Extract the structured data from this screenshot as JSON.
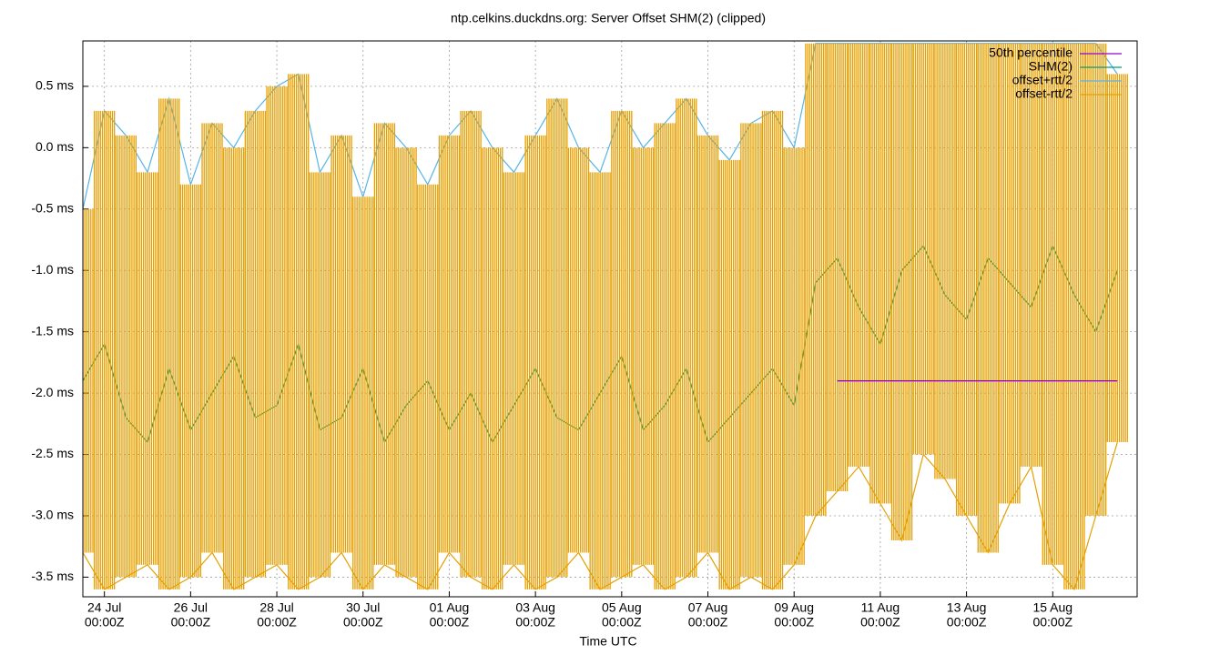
{
  "chart_data": {
    "type": "line",
    "title": "ntp.celkins.duckdns.org: Server Offset SHM(2) (clipped)",
    "x_label": "Time UTC",
    "x": [
      "23 Jul 12:00Z",
      "24 Jul 00:00Z",
      "24 Jul 12:00Z",
      "25 Jul 00:00Z",
      "25 Jul 12:00Z",
      "26 Jul 00:00Z",
      "26 Jul 12:00Z",
      "27 Jul 00:00Z",
      "27 Jul 12:00Z",
      "28 Jul 00:00Z",
      "28 Jul 12:00Z",
      "29 Jul 00:00Z",
      "29 Jul 12:00Z",
      "30 Jul 00:00Z",
      "30 Jul 12:00Z",
      "31 Jul 00:00Z",
      "31 Jul 12:00Z",
      "01 Aug 00:00Z",
      "01 Aug 12:00Z",
      "02 Aug 00:00Z",
      "02 Aug 12:00Z",
      "03 Aug 00:00Z",
      "03 Aug 12:00Z",
      "04 Aug 00:00Z",
      "04 Aug 12:00Z",
      "05 Aug 00:00Z",
      "05 Aug 12:00Z",
      "06 Aug 00:00Z",
      "06 Aug 12:00Z",
      "07 Aug 00:00Z",
      "07 Aug 12:00Z",
      "08 Aug 00:00Z",
      "08 Aug 12:00Z",
      "09 Aug 00:00Z",
      "09 Aug 12:00Z",
      "10 Aug 00:00Z",
      "10 Aug 12:00Z",
      "11 Aug 00:00Z",
      "11 Aug 12:00Z",
      "12 Aug 00:00Z",
      "12 Aug 12:00Z",
      "13 Aug 00:00Z",
      "13 Aug 12:00Z",
      "14 Aug 00:00Z",
      "14 Aug 12:00Z",
      "15 Aug 00:00Z",
      "15 Aug 12:00Z",
      "16 Aug 00:00Z",
      "16 Aug 12:00Z"
    ],
    "series": [
      {
        "name": "50th percentile",
        "color": "#9400d3",
        "values": [
          null,
          null,
          null,
          null,
          null,
          null,
          null,
          null,
          null,
          null,
          null,
          null,
          null,
          null,
          null,
          null,
          null,
          null,
          null,
          null,
          null,
          null,
          null,
          null,
          null,
          null,
          null,
          null,
          null,
          null,
          null,
          null,
          null,
          null,
          null,
          -1.9,
          -1.9,
          -1.9,
          -1.9,
          -1.9,
          -1.9,
          -1.9,
          -1.9,
          -1.9,
          -1.9,
          -1.9,
          -1.9,
          -1.9,
          -1.9
        ]
      },
      {
        "name": "SHM(2)",
        "color": "#009e73",
        "values": [
          -1.9,
          -1.6,
          -2.2,
          -2.4,
          -1.8,
          -2.3,
          -2.0,
          -1.7,
          -2.2,
          -2.1,
          -1.6,
          -2.3,
          -2.2,
          -1.8,
          -2.4,
          -2.1,
          -1.9,
          -2.3,
          -2.0,
          -2.4,
          -2.1,
          -1.8,
          -2.2,
          -2.3,
          -2.0,
          -1.7,
          -2.3,
          -2.1,
          -1.8,
          -2.4,
          -2.2,
          -2.0,
          -1.8,
          -2.1,
          -1.1,
          -0.9,
          -1.3,
          -1.6,
          -1.0,
          -0.8,
          -1.2,
          -1.4,
          -0.9,
          -1.1,
          -1.3,
          -0.8,
          -1.2,
          -1.5,
          -1.0
        ]
      },
      {
        "name": "offset+rtt/2",
        "color": "#56b4e9",
        "values": [
          -0.5,
          0.3,
          0.1,
          -0.2,
          0.4,
          -0.3,
          0.2,
          0.0,
          0.3,
          0.5,
          0.6,
          -0.2,
          0.1,
          -0.4,
          0.2,
          0.0,
          -0.3,
          0.1,
          0.3,
          0.0,
          -0.2,
          0.1,
          0.4,
          0.0,
          -0.2,
          0.3,
          0.0,
          0.2,
          0.4,
          0.1,
          -0.1,
          0.2,
          0.3,
          0.0,
          0.85,
          0.85,
          0.85,
          0.85,
          0.85,
          0.85,
          0.85,
          0.85,
          0.85,
          0.85,
          0.85,
          0.85,
          0.85,
          0.85,
          0.6
        ]
      },
      {
        "name": "offset-rtt/2",
        "color": "#e69f00",
        "values": [
          -3.3,
          -3.6,
          -3.5,
          -3.4,
          -3.6,
          -3.5,
          -3.3,
          -3.6,
          -3.5,
          -3.4,
          -3.6,
          -3.5,
          -3.3,
          -3.6,
          -3.4,
          -3.5,
          -3.6,
          -3.3,
          -3.5,
          -3.6,
          -3.4,
          -3.6,
          -3.5,
          -3.3,
          -3.6,
          -3.5,
          -3.4,
          -3.6,
          -3.5,
          -3.3,
          -3.6,
          -3.5,
          -3.6,
          -3.4,
          -3.0,
          -2.8,
          -2.6,
          -2.9,
          -3.2,
          -2.5,
          -2.7,
          -3.0,
          -3.3,
          -2.9,
          -2.6,
          -3.4,
          -3.6,
          -3.0,
          -2.4
        ]
      }
    ],
    "xlim": [
      "23 Jul 12:00Z",
      "16 Aug 23:00Z"
    ],
    "xticks": [
      {
        "value": "24 Jul 00:00Z",
        "label": [
          "24 Jul",
          "00:00Z"
        ]
      },
      {
        "value": "26 Jul 00:00Z",
        "label": [
          "26 Jul",
          "00:00Z"
        ]
      },
      {
        "value": "28 Jul 00:00Z",
        "label": [
          "28 Jul",
          "00:00Z"
        ]
      },
      {
        "value": "30 Jul 00:00Z",
        "label": [
          "30 Jul",
          "00:00Z"
        ]
      },
      {
        "value": "01 Aug 00:00Z",
        "label": [
          "01 Aug",
          "00:00Z"
        ]
      },
      {
        "value": "03 Aug 00:00Z",
        "label": [
          "03 Aug",
          "00:00Z"
        ]
      },
      {
        "value": "05 Aug 00:00Z",
        "label": [
          "05 Aug",
          "00:00Z"
        ]
      },
      {
        "value": "07 Aug 00:00Z",
        "label": [
          "07 Aug",
          "00:00Z"
        ]
      },
      {
        "value": "09 Aug 00:00Z",
        "label": [
          "09 Aug",
          "00:00Z"
        ]
      },
      {
        "value": "11 Aug 00:00Z",
        "label": [
          "11 Aug",
          "00:00Z"
        ]
      },
      {
        "value": "13 Aug 00:00Z",
        "label": [
          "13 Aug",
          "00:00Z"
        ]
      },
      {
        "value": "15 Aug 00:00Z",
        "label": [
          "15 Aug",
          "00:00Z"
        ]
      }
    ],
    "ylim": [
      -3.66,
      0.87
    ],
    "yticks": [
      {
        "value": 0.5,
        "label": "0.5 ms"
      },
      {
        "value": 0.0,
        "label": "0.0 ms"
      },
      {
        "value": -0.5,
        "label": "-0.5 ms"
      },
      {
        "value": -1.0,
        "label": "-1.0 ms"
      },
      {
        "value": -1.5,
        "label": "-1.5 ms"
      },
      {
        "value": -2.0,
        "label": "-2.0 ms"
      },
      {
        "value": -2.5,
        "label": "-2.5 ms"
      },
      {
        "value": -3.0,
        "label": "-3.0 ms"
      },
      {
        "value": -3.5,
        "label": "-3.5 ms"
      }
    ],
    "grid": true,
    "legend": "top-right"
  }
}
